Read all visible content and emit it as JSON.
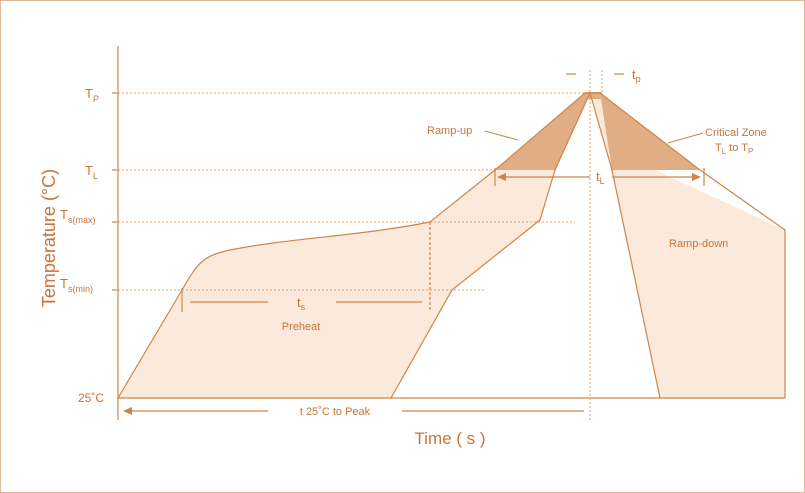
{
  "axis": {
    "y_label": "Temperature (°C)",
    "x_label": "Time ( s )"
  },
  "levels": {
    "tp": {
      "main": "T",
      "sub": "P"
    },
    "tl": {
      "main": "T",
      "sub": "L"
    },
    "ts_max": {
      "main": "T",
      "sub": "s(max)"
    },
    "ts_min": {
      "main": "T",
      "sub": "s(min)"
    },
    "base": "25˚C"
  },
  "annotations": {
    "ramp_up": "Ramp-up",
    "critical_zone_line1": "Critical Zone",
    "critical_zone_line2_main": "T",
    "critical_zone_line2_sub1": "L",
    "critical_zone_line2_mid": " to T",
    "critical_zone_line2_sub2": "P",
    "tp": {
      "main": "t",
      "sub": "p"
    },
    "tl": {
      "main": "t",
      "sub": "L"
    },
    "ts": {
      "main": "t",
      "sub": "s"
    },
    "preheat": "Preheat",
    "ramp_down": "Ramp-down",
    "t25_to_peak": "t 25˚C to Peak"
  },
  "colors": {
    "stroke": "#d08546",
    "light_fill": "#fbe9dc",
    "dark_fill": "#e0ad84",
    "text": "#c8743a",
    "guide": "#d9a27a"
  }
}
